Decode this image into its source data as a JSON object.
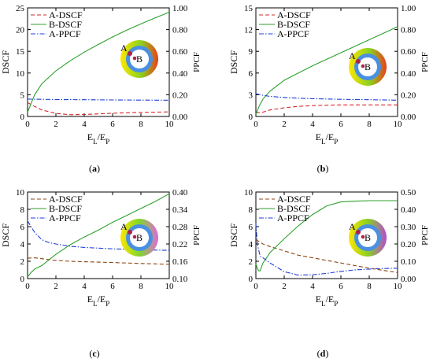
{
  "chart_data": [
    {
      "type": "line",
      "panel_label": "(a)",
      "xlabel": "E_L/E_P",
      "ylabel_left": "DSCF",
      "ylabel_right": "PPCF",
      "xlim": [
        0,
        10
      ],
      "xticks": [
        0,
        2,
        4,
        6,
        8,
        10
      ],
      "ylim_left": [
        0,
        25
      ],
      "yticks_left": [
        0,
        5,
        10,
        15,
        20,
        25
      ],
      "ylim_right": [
        0,
        1.0
      ],
      "yticks_right": [
        "0.00",
        "0.20",
        "0.40",
        "0.60",
        "0.80",
        "1.00"
      ],
      "legend": {
        "position": "top-left",
        "entries": [
          "A-DSCF",
          "B-DSCF",
          "A-PPCF"
        ]
      },
      "point_labels": [
        "A",
        "B"
      ],
      "series": [
        {
          "name": "A-DSCF",
          "color": "#d62728",
          "style": "dash",
          "axis": "left",
          "x": [
            0,
            0.5,
            1,
            2,
            3,
            4,
            5,
            6,
            7,
            8,
            9,
            10
          ],
          "y": [
            3.2,
            2.3,
            1.5,
            0.7,
            0.4,
            0.45,
            0.6,
            0.75,
            0.85,
            0.95,
            1.0,
            1.05
          ]
        },
        {
          "name": "B-DSCF",
          "color": "#2ca02c",
          "style": "solid",
          "axis": "left",
          "x": [
            0,
            0.25,
            0.5,
            1,
            2,
            3,
            4,
            5,
            6,
            7,
            8,
            9,
            10
          ],
          "y": [
            1.0,
            3.0,
            5.0,
            7.5,
            10.5,
            12.8,
            14.8,
            16.6,
            18.3,
            19.9,
            21.3,
            22.7,
            24.0
          ]
        },
        {
          "name": "A-PPCF",
          "color": "#1f3fd6",
          "style": "dashdot",
          "axis": "right",
          "x": [
            0,
            1,
            2,
            4,
            6,
            8,
            10
          ],
          "y": [
            0.16,
            0.158,
            0.156,
            0.154,
            0.152,
            0.151,
            0.15
          ]
        }
      ]
    },
    {
      "type": "line",
      "panel_label": "(b)",
      "xlabel": "E_L/E_P",
      "ylabel_left": "DSCF",
      "ylabel_right": "PPCF",
      "xlim": [
        0,
        10
      ],
      "xticks": [
        0,
        2,
        4,
        6,
        8,
        10
      ],
      "ylim_left": [
        0,
        15
      ],
      "yticks_left": [
        0,
        3,
        6,
        9,
        12,
        15
      ],
      "ylim_right": [
        0,
        1.0
      ],
      "yticks_right": [
        "0.00",
        "0.20",
        "0.40",
        "0.60",
        "0.80",
        "1.00"
      ],
      "legend": {
        "position": "top-left",
        "entries": [
          "A-DSCF",
          "B-DSCF",
          "A-PPCF"
        ]
      },
      "point_labels": [
        "A",
        "B"
      ],
      "series": [
        {
          "name": "A-DSCF",
          "color": "#d62728",
          "style": "dash",
          "axis": "left",
          "x": [
            0,
            0.5,
            1,
            2,
            3,
            4,
            5,
            6,
            7,
            8,
            9,
            10
          ],
          "y": [
            0.5,
            0.6,
            0.9,
            1.2,
            1.4,
            1.5,
            1.55,
            1.6,
            1.6,
            1.6,
            1.6,
            1.6
          ]
        },
        {
          "name": "B-DSCF",
          "color": "#2ca02c",
          "style": "solid",
          "axis": "left",
          "x": [
            0,
            0.25,
            0.5,
            1,
            2,
            3,
            4,
            5,
            6,
            7,
            8,
            9,
            10
          ],
          "y": [
            0.3,
            1.5,
            2.4,
            3.5,
            5.0,
            6.0,
            7.0,
            7.9,
            8.8,
            9.7,
            10.6,
            11.5,
            12.4
          ]
        },
        {
          "name": "A-PPCF",
          "color": "#1f3fd6",
          "style": "dashdot",
          "axis": "right",
          "x": [
            0,
            0.5,
            1,
            2,
            3,
            4,
            6,
            8,
            10
          ],
          "y": [
            0.21,
            0.195,
            0.185,
            0.175,
            0.168,
            0.164,
            0.158,
            0.154,
            0.15
          ]
        }
      ]
    },
    {
      "type": "line",
      "panel_label": "(c)",
      "xlabel": "E_L/E_P",
      "ylabel_left": "DSCF",
      "ylabel_right": "PPCF",
      "xlim": [
        0,
        10
      ],
      "xticks": [
        0,
        2,
        4,
        6,
        8,
        10
      ],
      "ylim_left": [
        0,
        10
      ],
      "yticks_left": [
        0,
        2,
        4,
        6,
        8,
        10
      ],
      "ylim_right": [
        0.1,
        0.4
      ],
      "yticks_right": [
        "0.10",
        "0.16",
        "0.22",
        "0.28",
        "0.34",
        "0.40"
      ],
      "legend": {
        "position": "top-left",
        "entries": [
          "A-DSCF",
          "B-DSCF",
          "A-PPCF"
        ]
      },
      "point_labels": [
        "A",
        "B"
      ],
      "series": [
        {
          "name": "A-DSCF",
          "color": "#8b4513",
          "style": "dash",
          "axis": "left",
          "x": [
            0,
            0.5,
            1,
            2,
            3,
            4,
            5,
            6,
            7,
            8,
            9,
            10
          ],
          "y": [
            2.35,
            2.4,
            2.3,
            2.1,
            2.0,
            1.95,
            1.9,
            1.85,
            1.8,
            1.75,
            1.7,
            1.65
          ]
        },
        {
          "name": "B-DSCF",
          "color": "#2ca02c",
          "style": "solid",
          "axis": "left",
          "x": [
            0,
            0.25,
            0.5,
            1,
            2,
            3,
            4,
            5,
            6,
            7,
            8,
            9,
            10
          ],
          "y": [
            0.2,
            0.7,
            1.1,
            1.5,
            2.8,
            3.9,
            4.8,
            5.6,
            6.5,
            7.3,
            8.1,
            8.9,
            9.8
          ]
        },
        {
          "name": "A-PPCF",
          "color": "#1f3fd6",
          "style": "dashdot",
          "axis": "right",
          "x": [
            0,
            0.25,
            0.5,
            1,
            1.5,
            2,
            3,
            4,
            6,
            8,
            10
          ],
          "y": [
            0.3,
            0.28,
            0.26,
            0.235,
            0.225,
            0.22,
            0.212,
            0.208,
            0.203,
            0.2,
            0.198
          ]
        }
      ]
    },
    {
      "type": "line",
      "panel_label": "(d)",
      "xlabel": "E_L/E_P",
      "ylabel_left": "DSCF",
      "ylabel_right": "PPCF",
      "xlim": [
        0,
        10
      ],
      "xticks": [
        0,
        2,
        4,
        6,
        8,
        10
      ],
      "ylim_left": [
        0,
        10
      ],
      "yticks_left": [
        0,
        2,
        4,
        6,
        8,
        10
      ],
      "ylim_right": [
        0,
        0.5
      ],
      "yticks_right": [
        "0.00",
        "0.10",
        "0.20",
        "0.30",
        "0.40",
        "0.50"
      ],
      "legend": {
        "position": "top-left",
        "entries": [
          "A-DSCF",
          "B-DSCF",
          "A-PPCF"
        ]
      },
      "point_labels": [
        "A",
        "B"
      ],
      "series": [
        {
          "name": "A-DSCF",
          "color": "#8b4513",
          "style": "dash",
          "axis": "left",
          "x": [
            0,
            0.5,
            1,
            2,
            3,
            4,
            5,
            6,
            7,
            8,
            9,
            10
          ],
          "y": [
            4.5,
            4.0,
            3.7,
            3.2,
            2.7,
            2.4,
            2.1,
            1.8,
            1.5,
            1.2,
            0.95,
            0.7
          ]
        },
        {
          "name": "B-DSCF",
          "color": "#2ca02c",
          "style": "solid",
          "axis": "left",
          "x": [
            0,
            0.1,
            0.2,
            0.3,
            0.5,
            1,
            2,
            3,
            4,
            5,
            6,
            7,
            8,
            9,
            10
          ],
          "y": [
            1.7,
            1.2,
            0.9,
            0.9,
            1.8,
            3.0,
            4.6,
            6.1,
            7.4,
            8.4,
            8.85,
            8.95,
            9.0,
            9.0,
            9.0
          ]
        },
        {
          "name": "A-PPCF",
          "color": "#1f3fd6",
          "style": "dashdot",
          "axis": "right",
          "x": [
            0,
            0.1,
            0.3,
            0.5,
            1,
            2,
            3,
            4,
            5,
            6,
            7,
            8,
            9,
            10
          ],
          "y": [
            0.32,
            0.2,
            0.13,
            0.12,
            0.09,
            0.04,
            0.02,
            0.022,
            0.03,
            0.042,
            0.05,
            0.055,
            0.058,
            0.06
          ]
        }
      ]
    }
  ]
}
